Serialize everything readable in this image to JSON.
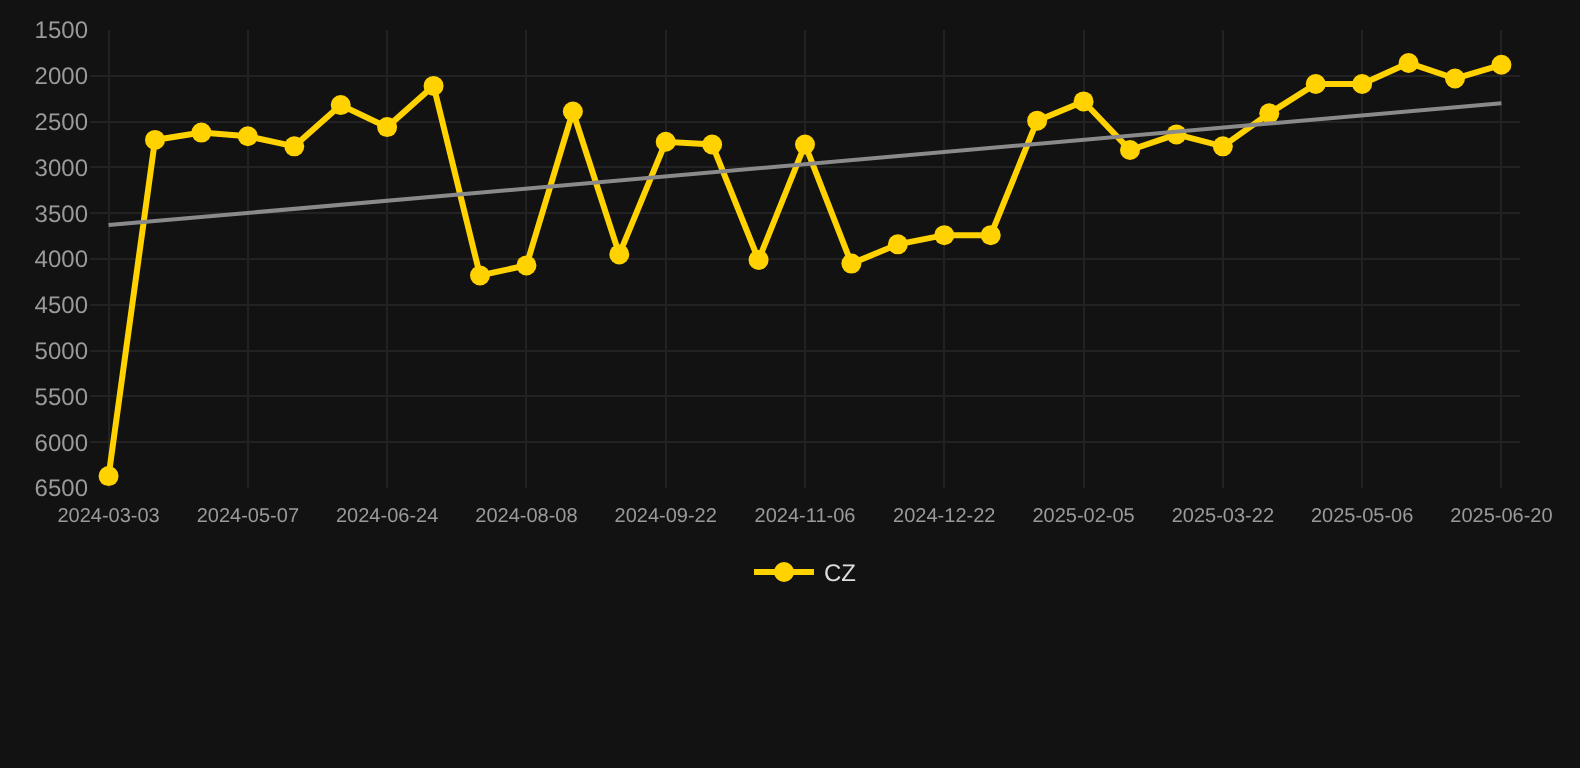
{
  "chart_data": {
    "type": "line",
    "categories": [
      "2024-03-03",
      null,
      null,
      "2024-05-07",
      null,
      null,
      "2024-06-24",
      null,
      null,
      "2024-08-08",
      null,
      null,
      "2024-09-22",
      null,
      null,
      "2024-11-06",
      null,
      null,
      "2024-12-22",
      null,
      null,
      "2025-02-05",
      null,
      null,
      "2025-03-22",
      null,
      null,
      "2025-05-06",
      null,
      null,
      "2025-06-20"
    ],
    "series": [
      {
        "name": "CZ",
        "color": "#ffd200",
        "marker": "circle",
        "values": [
          6370,
          2700,
          2620,
          2660,
          2770,
          2320,
          2560,
          2110,
          4180,
          4070,
          2390,
          3950,
          2720,
          2750,
          4010,
          2750,
          4050,
          3840,
          3740,
          3740,
          2490,
          2280,
          2810,
          2640,
          2770,
          2410,
          2090,
          2090,
          1860,
          2030,
          1880
        ]
      },
      {
        "type": "line",
        "color": "#8a8a8a",
        "marker": "none",
        "values": [
          3630,
          null,
          null,
          null,
          null,
          null,
          null,
          null,
          null,
          null,
          null,
          null,
          null,
          null,
          null,
          null,
          null,
          null,
          null,
          null,
          null,
          null,
          null,
          null,
          null,
          null,
          null,
          null,
          null,
          null,
          2300
        ]
      }
    ],
    "ylim": [
      6500,
      1500
    ],
    "yticks": [
      1500,
      2000,
      2500,
      3000,
      3500,
      4000,
      4500,
      5000,
      5500,
      6000,
      6500
    ],
    "grid": true,
    "legend": "bottom"
  }
}
